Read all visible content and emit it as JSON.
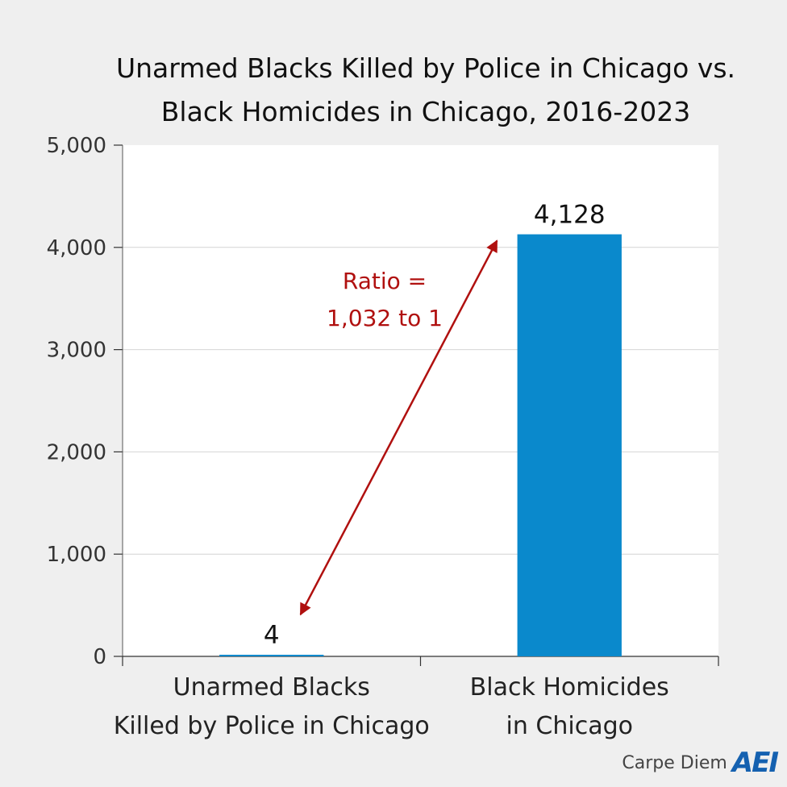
{
  "chart_data": {
    "type": "bar",
    "title_lines": [
      "Unarmed Blacks Killed by Police in Chicago vs.",
      "Black Homicides in Chicago, 2016-2023"
    ],
    "categories": [
      [
        "Unarmed Blacks",
        "Killed by Police in Chicago"
      ],
      [
        "Black Homicides",
        "in Chicago"
      ]
    ],
    "values": [
      4,
      4128
    ],
    "data_labels": [
      "4",
      "4,128"
    ],
    "ylim": [
      0,
      5000
    ],
    "yticks": [
      0,
      1000,
      2000,
      3000,
      4000,
      5000
    ],
    "ytick_labels": [
      "0",
      "1,000",
      "2,000",
      "3,000",
      "4,000",
      "5,000"
    ],
    "grid": true,
    "bar_color": "#0a89cc",
    "annotation": {
      "lines": [
        "Ratio =",
        "1,032 to 1"
      ],
      "color": "#b0100f"
    }
  },
  "footer": {
    "credit": "Carpe Diem",
    "logo": "AEI"
  }
}
